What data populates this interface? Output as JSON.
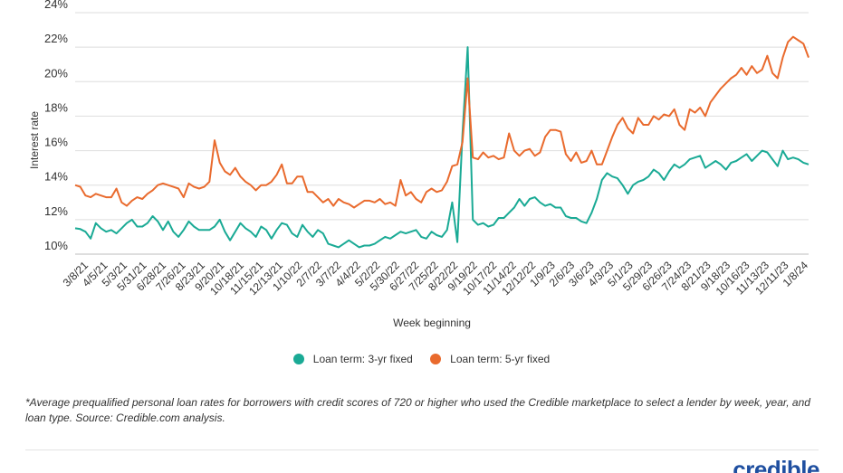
{
  "chart_data": {
    "type": "line",
    "title": "",
    "xlabel": "Week beginning",
    "ylabel": "Interest rate",
    "ylim": [
      10,
      24
    ],
    "yticks": [
      "10%",
      "12%",
      "14%",
      "16%",
      "18%",
      "20%",
      "22%",
      "24%"
    ],
    "grid": true,
    "legend_position": "bottom",
    "x_tick_labels": [
      "3/8/21",
      "4/5/21",
      "5/3/21",
      "5/31/21",
      "6/28/21",
      "7/26/21",
      "8/23/21",
      "9/20/21",
      "10/18/21",
      "11/15/21",
      "12/13/21",
      "1/10/22",
      "2/7/22",
      "3/7/22",
      "4/4/22",
      "5/2/22",
      "5/30/22",
      "6/27/22",
      "7/25/22",
      "8/22/22",
      "9/19/22",
      "10/17/22",
      "11/14/22",
      "12/12/22",
      "1/9/23",
      "2/6/23",
      "3/6/23",
      "4/3/23",
      "5/1/23",
      "5/29/23",
      "6/26/23",
      "7/24/23",
      "8/21/23",
      "9/18/23",
      "10/16/23",
      "11/13/23",
      "12/11/23",
      "1/8/24"
    ],
    "series": [
      {
        "name": "Loan term: 3-yr fixed",
        "color": "#1aaa95",
        "values": [
          11.5,
          11.45,
          11.3,
          10.9,
          11.8,
          11.5,
          11.3,
          11.4,
          11.2,
          11.5,
          11.8,
          12.0,
          11.6,
          11.6,
          11.8,
          12.2,
          11.9,
          11.4,
          11.9,
          11.3,
          11.0,
          11.4,
          11.9,
          11.6,
          11.4,
          11.4,
          11.4,
          11.6,
          12.0,
          11.3,
          10.8,
          11.3,
          11.8,
          11.5,
          11.3,
          11.0,
          11.6,
          11.4,
          10.9,
          11.4,
          11.8,
          11.7,
          11.2,
          11.0,
          11.7,
          11.3,
          11.0,
          11.4,
          11.2,
          10.6,
          10.5,
          10.4,
          10.6,
          10.8,
          10.6,
          10.4,
          10.5,
          10.5,
          10.6,
          10.8,
          11.0,
          10.9,
          11.1,
          11.3,
          11.2,
          11.3,
          11.4,
          11.0,
          10.9,
          11.3,
          11.1,
          11.0,
          11.4,
          13.0,
          10.7,
          17.0,
          22.0,
          12.0,
          11.7,
          11.8,
          11.6,
          11.7,
          12.1,
          12.1,
          12.4,
          12.7,
          13.2,
          12.8,
          13.2,
          13.3,
          13.0,
          12.8,
          12.9,
          12.7,
          12.7,
          12.2,
          12.1,
          12.1,
          11.9,
          11.8,
          12.4,
          13.2,
          14.3,
          14.7,
          14.5,
          14.4,
          14.0,
          13.5,
          14.0,
          14.2,
          14.3,
          14.5,
          14.9,
          14.7,
          14.3,
          14.8,
          15.2,
          15.0,
          15.2,
          15.5,
          15.6,
          15.7,
          15.0,
          15.2,
          15.4,
          15.2,
          14.9,
          15.3,
          15.4,
          15.6,
          15.8,
          15.4,
          15.7,
          16.0,
          15.9,
          15.5,
          15.1,
          16.0,
          15.5,
          15.6,
          15.5,
          15.3,
          15.2
        ],
        "note": "approximate weekly values from 3/8/21 to 1/8/24"
      },
      {
        "name": "Loan term: 5-yr fixed",
        "color": "#e96a2d",
        "values": [
          14.0,
          13.9,
          13.4,
          13.3,
          13.5,
          13.4,
          13.3,
          13.3,
          13.8,
          13.0,
          12.8,
          13.1,
          13.3,
          13.2,
          13.5,
          13.7,
          14.0,
          14.1,
          14.0,
          13.9,
          13.8,
          13.3,
          14.1,
          13.9,
          13.8,
          13.9,
          14.2,
          16.6,
          15.3,
          14.8,
          14.6,
          15.0,
          14.5,
          14.2,
          14.0,
          13.7,
          14.0,
          14.0,
          14.2,
          14.6,
          15.2,
          14.1,
          14.1,
          14.5,
          14.5,
          13.6,
          13.6,
          13.3,
          13.0,
          13.2,
          12.8,
          13.2,
          13.0,
          12.9,
          12.7,
          12.9,
          13.1,
          13.1,
          13.0,
          13.2,
          12.9,
          13.0,
          12.8,
          14.3,
          13.4,
          13.6,
          13.2,
          13.0,
          13.6,
          13.8,
          13.6,
          13.7,
          14.2,
          15.1,
          15.2,
          16.5,
          20.2,
          15.6,
          15.5,
          15.9,
          15.6,
          15.7,
          15.5,
          15.6,
          17.0,
          16.0,
          15.7,
          16.0,
          16.1,
          15.7,
          15.9,
          16.8,
          17.2,
          17.2,
          17.1,
          15.8,
          15.4,
          15.9,
          15.3,
          15.4,
          16.0,
          15.2,
          15.2,
          16.0,
          16.8,
          17.5,
          17.9,
          17.3,
          17.0,
          17.9,
          17.5,
          17.5,
          18.0,
          17.8,
          18.1,
          18.0,
          18.4,
          17.5,
          17.2,
          18.4,
          18.2,
          18.5,
          18.0,
          18.8,
          19.2,
          19.6,
          19.9,
          20.2,
          20.4,
          20.8,
          20.4,
          20.9,
          20.5,
          20.7,
          21.5,
          20.5,
          20.2,
          21.4,
          22.3,
          22.6,
          22.4,
          22.2,
          21.4
        ],
        "note": "approximate weekly values from 3/8/21 to 1/8/24"
      }
    ]
  },
  "footnote": "*Average prequalified personal loan rates for borrowers with credit scores of 720 or higher who used the Credible marketplace to select a lender by week, year, and loan type. Source: Credible.com analysis.",
  "brand": {
    "logo_text": "credible",
    "color": "#1f4fa0"
  }
}
